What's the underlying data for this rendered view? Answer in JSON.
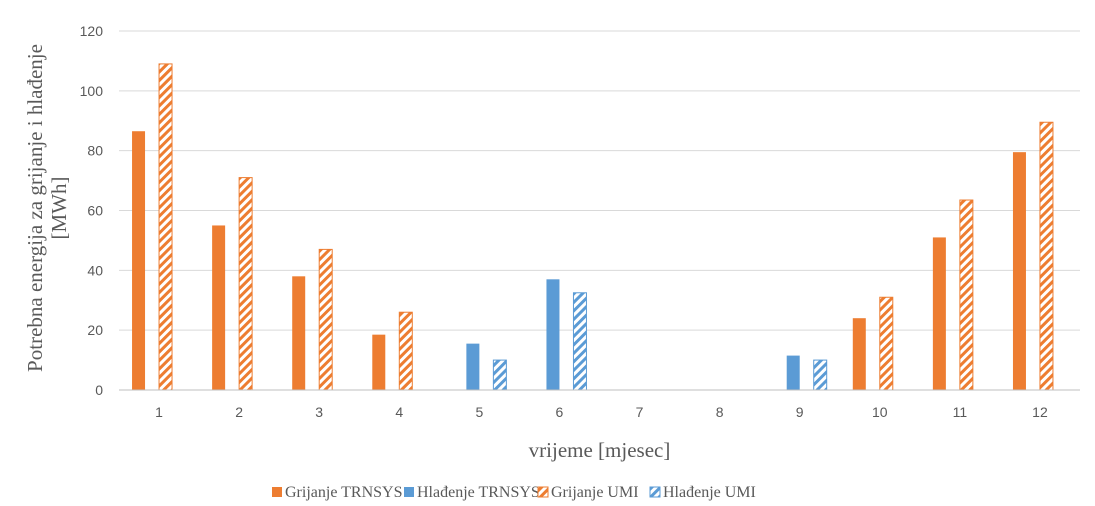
{
  "chart_data": {
    "type": "bar",
    "title": "",
    "xlabel": "vrijeme [mjesec]",
    "ylabel_lines": [
      "Potrebna energija za grijanje i hlađenje",
      "[MWh]"
    ],
    "categories": [
      "1",
      "2",
      "3",
      "4",
      "5",
      "6",
      "7",
      "8",
      "9",
      "10",
      "11",
      "12"
    ],
    "ylim": [
      0,
      120
    ],
    "yticks": [
      0,
      20,
      40,
      60,
      80,
      100,
      120
    ],
    "grid": true,
    "legend_position": "bottom",
    "series": [
      {
        "name": "Grijanje TRNSYS",
        "color": "#ED7D31",
        "pattern": "solid",
        "values": [
          86.5,
          55,
          38,
          18.5,
          null,
          null,
          null,
          null,
          null,
          24,
          51,
          79.5
        ]
      },
      {
        "name": "Hlađenje TRNSYS",
        "color": "#5B9BD5",
        "pattern": "solid",
        "values": [
          null,
          null,
          null,
          null,
          15.5,
          37,
          null,
          null,
          11.5,
          null,
          null,
          null
        ]
      },
      {
        "name": "Grijanje UMI",
        "color": "#ED7D31",
        "pattern": "hatched",
        "values": [
          109,
          71,
          47,
          26,
          null,
          null,
          null,
          null,
          null,
          31,
          63.5,
          89.5
        ]
      },
      {
        "name": "Hlađenje UMI",
        "color": "#5B9BD5",
        "pattern": "hatched",
        "values": [
          null,
          null,
          null,
          null,
          10,
          32.5,
          null,
          null,
          10,
          null,
          null,
          null
        ]
      }
    ]
  }
}
